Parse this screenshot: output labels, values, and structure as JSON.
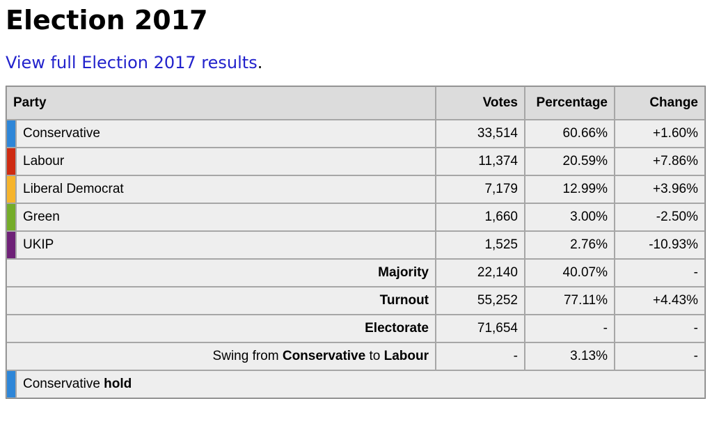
{
  "page": {
    "title": "Election 2017",
    "link_label": "View full Election 2017 results",
    "link_suffix": "."
  },
  "colors": {
    "link": "#2222cc",
    "header_background": "#dcdcdc",
    "row_background": "#eeeeee",
    "grid_border": "#a6a6a6"
  },
  "table": {
    "headers": {
      "party": "Party",
      "votes": "Votes",
      "percentage": "Percentage",
      "change": "Change"
    },
    "party_rows": [
      {
        "party": "Conservative",
        "color": "#2e86d8",
        "votes": "33,514",
        "percentage": "60.66%",
        "change": "+1.60%"
      },
      {
        "party": "Labour",
        "color": "#ce2b12",
        "votes": "11,374",
        "percentage": "20.59%",
        "change": "+7.86%"
      },
      {
        "party": "Liberal Democrat",
        "color": "#f6b42c",
        "votes": "7,179",
        "percentage": "12.99%",
        "change": "+3.96%"
      },
      {
        "party": "Green",
        "color": "#74ac29",
        "votes": "1,660",
        "percentage": "3.00%",
        "change": "-2.50%"
      },
      {
        "party": "UKIP",
        "color": "#6e2177",
        "votes": "1,525",
        "percentage": "2.76%",
        "change": "-10.93%"
      }
    ],
    "summary_rows": [
      {
        "label": "Majority",
        "votes": "22,140",
        "percentage": "40.07%",
        "change": "-"
      },
      {
        "label": "Turnout",
        "votes": "55,252",
        "percentage": "77.11%",
        "change": "+4.43%"
      },
      {
        "label": "Electorate",
        "votes": "71,654",
        "percentage": "-",
        "change": "-"
      }
    ],
    "swing_row": {
      "prefix": "Swing from ",
      "from_party": "Conservative",
      "middle": " to ",
      "to_party": "Labour",
      "votes": "-",
      "percentage": "3.13%",
      "change": "-"
    },
    "result_row": {
      "color": "#2e86d8",
      "party": "Conservative ",
      "status": "hold"
    }
  }
}
